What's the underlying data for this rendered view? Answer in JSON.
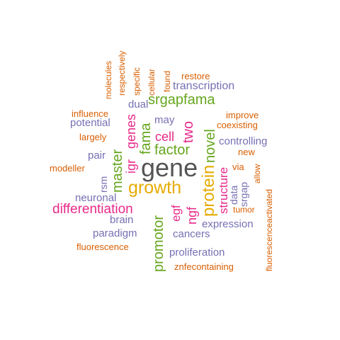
{
  "palette": {
    "gray": "#555555",
    "orange": "#d95f02",
    "purple": "#7570b3",
    "pink": "#e7298a",
    "green": "#66a61e",
    "gold": "#e6ab02"
  },
  "words": [
    {
      "text": "gene",
      "color": "gray",
      "rotated": false
    },
    {
      "text": "growth",
      "color": "gold",
      "rotated": false
    },
    {
      "text": "srgapfama",
      "color": "green",
      "rotated": false
    },
    {
      "text": "factor",
      "color": "green",
      "rotated": false
    },
    {
      "text": "differentiation",
      "color": "pink",
      "rotated": false
    },
    {
      "text": "protein",
      "color": "gold",
      "rotated": true
    },
    {
      "text": "novel",
      "color": "green",
      "rotated": true
    },
    {
      "text": "promotor",
      "color": "green",
      "rotated": true
    },
    {
      "text": "master",
      "color": "green",
      "rotated": true
    },
    {
      "text": "fama",
      "color": "green",
      "rotated": true
    },
    {
      "text": "two",
      "color": "pink",
      "rotated": true
    },
    {
      "text": "cell",
      "color": "pink",
      "rotated": false
    },
    {
      "text": "genes",
      "color": "pink",
      "rotated": true
    },
    {
      "text": "igr",
      "color": "pink",
      "rotated": true
    },
    {
      "text": "egf",
      "color": "pink",
      "rotated": true
    },
    {
      "text": "ngf",
      "color": "pink",
      "rotated": true
    },
    {
      "text": "structure",
      "color": "pink",
      "rotated": true
    },
    {
      "text": "transcription",
      "color": "purple",
      "rotated": false
    },
    {
      "text": "may",
      "color": "purple",
      "rotated": false
    },
    {
      "text": "dual",
      "color": "purple",
      "rotated": false
    },
    {
      "text": "potential",
      "color": "purple",
      "rotated": false
    },
    {
      "text": "controlling",
      "color": "purple",
      "rotated": false
    },
    {
      "text": "pair",
      "color": "purple",
      "rotated": false
    },
    {
      "text": "rsm",
      "color": "purple",
      "rotated": true
    },
    {
      "text": "neuronal",
      "color": "purple",
      "rotated": false
    },
    {
      "text": "data",
      "color": "purple",
      "rotated": true
    },
    {
      "text": "srgap",
      "color": "purple",
      "rotated": true
    },
    {
      "text": "brain",
      "color": "purple",
      "rotated": false
    },
    {
      "text": "expression",
      "color": "purple",
      "rotated": false
    },
    {
      "text": "paradigm",
      "color": "purple",
      "rotated": false
    },
    {
      "text": "cancers",
      "color": "purple",
      "rotated": false
    },
    {
      "text": "proliferation",
      "color": "purple",
      "rotated": false
    },
    {
      "text": "molecules",
      "color": "orange",
      "rotated": true
    },
    {
      "text": "respectively",
      "color": "orange",
      "rotated": true
    },
    {
      "text": "specific",
      "color": "orange",
      "rotated": true
    },
    {
      "text": "cellular",
      "color": "orange",
      "rotated": true
    },
    {
      "text": "found",
      "color": "orange",
      "rotated": true
    },
    {
      "text": "restore",
      "color": "orange",
      "rotated": false
    },
    {
      "text": "influence",
      "color": "orange",
      "rotated": false
    },
    {
      "text": "improve",
      "color": "orange",
      "rotated": false
    },
    {
      "text": "coexisting",
      "color": "orange",
      "rotated": false
    },
    {
      "text": "largely",
      "color": "orange",
      "rotated": false
    },
    {
      "text": "new",
      "color": "orange",
      "rotated": false
    },
    {
      "text": "modeller",
      "color": "orange",
      "rotated": false
    },
    {
      "text": "via",
      "color": "orange",
      "rotated": false
    },
    {
      "text": "allow",
      "color": "orange",
      "rotated": true
    },
    {
      "text": "tumor",
      "color": "orange",
      "rotated": false
    },
    {
      "text": "fluorescenceactivated",
      "color": "orange",
      "rotated": true
    },
    {
      "text": "fluorescence",
      "color": "orange",
      "rotated": false
    },
    {
      "text": "znfecontaining",
      "color": "orange",
      "rotated": false
    }
  ]
}
